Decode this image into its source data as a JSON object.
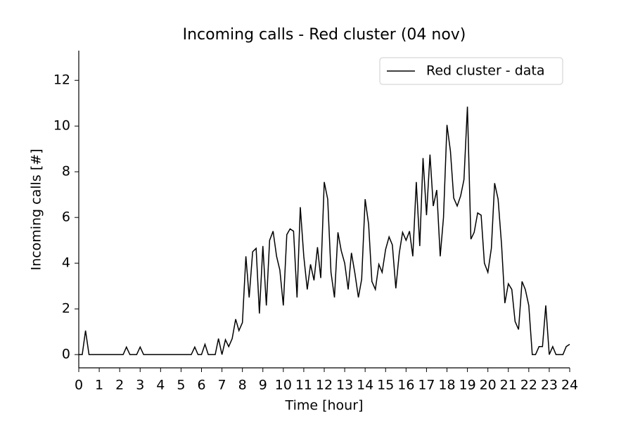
{
  "chart_data": {
    "type": "line",
    "title": "Incoming calls - Red cluster (04 nov)",
    "x_label": "Time [hour]",
    "y_label": "Incoming calls [#]",
    "legend_position": "upper right",
    "xlim": [
      0,
      24
    ],
    "ylim": [
      -0.58,
      13.3
    ],
    "xticks": [
      0,
      1,
      2,
      3,
      4,
      5,
      6,
      7,
      8,
      9,
      10,
      11,
      12,
      13,
      14,
      15,
      16,
      17,
      18,
      19,
      20,
      21,
      22,
      23,
      24
    ],
    "yticks": [
      0,
      2,
      4,
      6,
      8,
      10,
      12
    ],
    "x": [
      0,
      0.17,
      0.33,
      0.5,
      0.67,
      0.83,
      1,
      1.17,
      1.33,
      1.5,
      1.67,
      1.83,
      2,
      2.17,
      2.33,
      2.5,
      2.67,
      2.83,
      3,
      3.17,
      3.33,
      3.5,
      3.67,
      3.83,
      4,
      4.17,
      4.33,
      4.5,
      4.67,
      4.83,
      5,
      5.17,
      5.33,
      5.5,
      5.67,
      5.83,
      6,
      6.17,
      6.33,
      6.5,
      6.67,
      6.83,
      7,
      7.17,
      7.33,
      7.5,
      7.67,
      7.83,
      8,
      8.17,
      8.33,
      8.5,
      8.67,
      8.83,
      9,
      9.17,
      9.33,
      9.5,
      9.67,
      9.83,
      10,
      10.17,
      10.33,
      10.5,
      10.67,
      10.83,
      11,
      11.17,
      11.33,
      11.5,
      11.67,
      11.83,
      12,
      12.17,
      12.33,
      12.5,
      12.67,
      12.83,
      13,
      13.17,
      13.33,
      13.5,
      13.67,
      13.83,
      14,
      14.17,
      14.33,
      14.5,
      14.67,
      14.83,
      15,
      15.17,
      15.33,
      15.5,
      15.67,
      15.83,
      16,
      16.17,
      16.33,
      16.5,
      16.67,
      16.83,
      17,
      17.17,
      17.33,
      17.5,
      17.67,
      17.83,
      18,
      18.17,
      18.33,
      18.5,
      18.67,
      18.83,
      19,
      19.17,
      19.33,
      19.5,
      19.67,
      19.83,
      20,
      20.17,
      20.33,
      20.5,
      20.67,
      20.83,
      21,
      21.17,
      21.33,
      21.5,
      21.67,
      21.83,
      22,
      22.17,
      22.33,
      22.5,
      22.67,
      22.83,
      23,
      23.17,
      23.33,
      23.5,
      23.67,
      23.83,
      24
    ],
    "series": [
      {
        "name": "Red cluster - data",
        "color": "#000000",
        "values": [
          0,
          0,
          1.05,
          0,
          0,
          0,
          0,
          0,
          0,
          0,
          0,
          0,
          0,
          0,
          0.33,
          0,
          0,
          0,
          0.33,
          0,
          0,
          0,
          0,
          0,
          0,
          0,
          0,
          0,
          0,
          0,
          0,
          0,
          0,
          0,
          0.33,
          0,
          0,
          0.45,
          0,
          0,
          0,
          0.7,
          0,
          0.65,
          0.35,
          0.7,
          1.55,
          1.05,
          1.4,
          4.3,
          2.5,
          4.5,
          4.65,
          1.8,
          4.75,
          2.15,
          5.0,
          5.4,
          4.3,
          3.7,
          2.15,
          5.25,
          5.5,
          5.4,
          2.5,
          6.45,
          4.3,
          2.85,
          3.95,
          3.25,
          4.7,
          3.35,
          7.55,
          6.8,
          3.6,
          2.5,
          5.35,
          4.55,
          4.0,
          2.85,
          4.45,
          3.55,
          2.5,
          3.3,
          6.8,
          5.7,
          3.2,
          2.85,
          3.95,
          3.6,
          4.6,
          5.15,
          4.8,
          2.9,
          4.45,
          5.35,
          5.0,
          5.4,
          4.3,
          7.55,
          4.75,
          8.6,
          6.1,
          8.75,
          6.5,
          7.2,
          4.3,
          6.0,
          10.05,
          8.9,
          6.85,
          6.5,
          6.95,
          7.65,
          10.85,
          5.05,
          5.35,
          6.2,
          6.1,
          4.0,
          3.6,
          4.65,
          7.5,
          6.8,
          4.8,
          2.25,
          3.1,
          2.85,
          1.45,
          1.1,
          3.2,
          2.85,
          2.15,
          0,
          0,
          0.35,
          0.35,
          2.15,
          0,
          0.35,
          0,
          0,
          0,
          0.35,
          0.45
        ]
      }
    ]
  }
}
